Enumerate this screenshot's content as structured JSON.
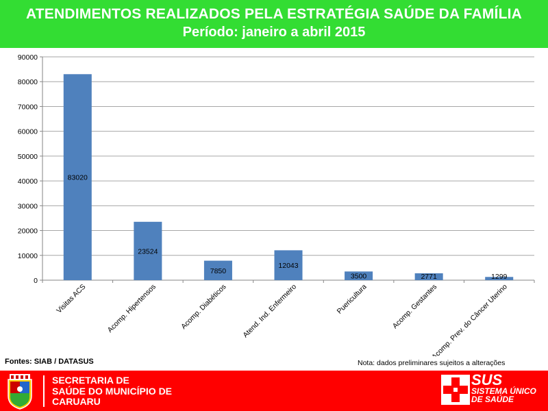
{
  "header": {
    "title": "ATENDIMENTOS REALIZADOS PELA ESTRATÉGIA SAÚDE DA FAMÍLIA",
    "subtitle": "Período:  janeiro a abril 2015"
  },
  "chart_data": {
    "type": "bar",
    "categories": [
      "Visitas  ACS",
      "Acomp. Hipertensos",
      "Acomp. Diabéticos",
      "Atend. Ind. Enfermeiro",
      "Puericultura",
      "Acomp. Gestantes",
      "Acomp. Prev. do Câncer Uterino"
    ],
    "values": [
      83020,
      23524,
      7850,
      12043,
      3500,
      2771,
      1299
    ],
    "ylim": [
      0,
      90000
    ],
    "yticks": [
      0,
      10000,
      20000,
      30000,
      40000,
      50000,
      60000,
      70000,
      80000,
      90000
    ],
    "grid": true,
    "bar_color": "#4f81bd"
  },
  "notes": {
    "sources": "Fontes: SIAB / DATASUS",
    "disclaimer": "Nota: dados preliminares sujeitos a alterações"
  },
  "footer": {
    "secretaria_line1": "SECRETARIA DE",
    "secretaria_line2": "SAÚDE DO MUNICÍPIO DE",
    "secretaria_line3": "CARUARU",
    "sus_word": "SUS",
    "sus_line1": "SISTEMA ÚNICO",
    "sus_line2": "DE SAÚDE"
  },
  "colors": {
    "header_bg": "#33dd33",
    "footer_bg": "#ff0000",
    "bar": "#4f81bd"
  }
}
